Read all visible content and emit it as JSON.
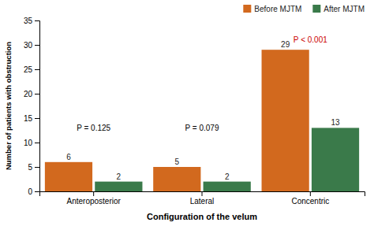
{
  "chart_data": {
    "type": "bar",
    "xlabel": "Configuration of the velum",
    "ylabel": "Number of patients with obstruction",
    "categories": [
      "Anteroposterior",
      "Lateral",
      "Concentric"
    ],
    "series": [
      {
        "name": "Before MJTM",
        "color": "#D2691E",
        "values": [
          6,
          5,
          29
        ]
      },
      {
        "name": "After MJTM",
        "color": "#3A7A4A",
        "values": [
          2,
          2,
          13
        ]
      }
    ],
    "annotations": [
      {
        "text": "P = 0.125",
        "x": "Anteroposterior",
        "y": 12.5,
        "color": "#000000"
      },
      {
        "text": "P = 0.079",
        "x": "Lateral",
        "y": 12.5,
        "color": "#000000"
      },
      {
        "text": "P < 0.001",
        "x": "Concentric",
        "y": 30.5,
        "color": "#CC0000"
      }
    ],
    "ylim": [
      0,
      35
    ],
    "yticks": [
      0,
      5,
      10,
      15,
      20,
      25,
      30,
      35
    ],
    "data_labels": true,
    "grid": false,
    "legend": "top"
  }
}
